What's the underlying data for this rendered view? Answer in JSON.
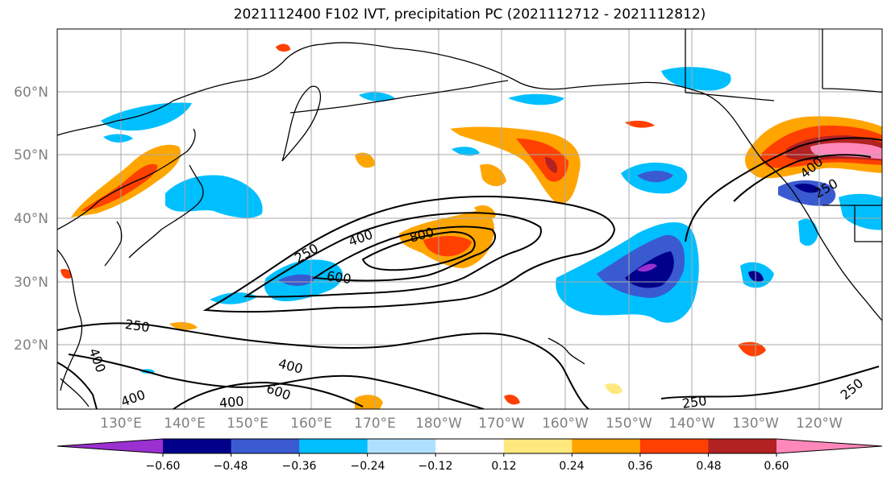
{
  "title": "2021112400 F102 IVT, precipitation PC (2021112712 - 2021112812)",
  "lat_labels": [
    "60°N",
    "50°N",
    "40°N",
    "30°N",
    "20°N"
  ],
  "lon_labels": [
    "130°E",
    "140°E",
    "150°E",
    "160°E",
    "170°E",
    "180°W",
    "170°W",
    "160°W",
    "150°W",
    "140°W",
    "130°W",
    "120°W"
  ],
  "colorbar": {
    "colors": [
      "#9b30d0",
      "#00008b",
      "#3a5bd0",
      "#00bfff",
      "#b0e0ff",
      "#ffffff",
      "#ffe97f",
      "#ffa500",
      "#ff4000",
      "#b22222",
      "#ff88bb"
    ],
    "tick_labels": [
      "−0.60",
      "−0.48",
      "−0.36",
      "−0.24",
      "−0.12",
      "0.12",
      "0.24",
      "0.36",
      "0.48",
      "0.60"
    ]
  },
  "ivt_contour_labels": [
    "250",
    "400",
    "800",
    "600",
    "250",
    "400",
    "400",
    "600",
    "400",
    "400",
    "250",
    "250",
    "400",
    "250"
  ],
  "colors": {
    "grid": "#a9a9a9",
    "coast": "#000000",
    "ivt": "#000000"
  }
}
